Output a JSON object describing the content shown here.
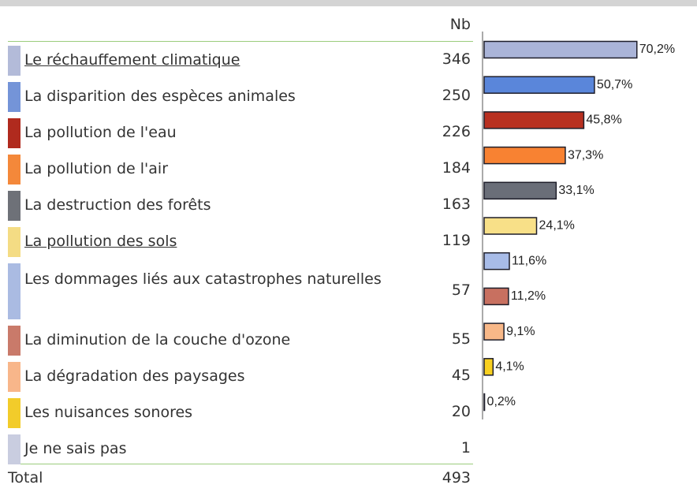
{
  "chart_data": {
    "type": "bar",
    "orientation": "horizontal",
    "count_header": "Nb",
    "categories": [
      "Le réchauffement climatique",
      "La disparition des espèces animales",
      "La pollution de l'eau",
      "La pollution de l'air",
      "La destruction des forêts",
      "La pollution des sols",
      "Les dommages liés aux catastrophes naturelles",
      "La diminution de la couche d'ozone",
      "La dégradation des paysages",
      "Les nuisances sonores",
      "Je ne sais pas"
    ],
    "underlined": [
      true,
      false,
      false,
      false,
      false,
      true,
      false,
      false,
      false,
      false,
      false
    ],
    "counts": [
      346,
      250,
      226,
      184,
      163,
      119,
      57,
      55,
      45,
      20,
      1
    ],
    "values": [
      70.2,
      50.7,
      45.8,
      37.3,
      33.1,
      24.1,
      11.6,
      11.2,
      9.1,
      4.1,
      0.2
    ],
    "value_labels": [
      "70,2%",
      "50,7%",
      "45,8%",
      "37,3%",
      "33,1%",
      "24,1%",
      "11,6%",
      "11,2%",
      "9,1%",
      "4,1%",
      "0,2%"
    ],
    "swatch_colors": [
      "#b3bbd9",
      "#7494d8",
      "#b02a1e",
      "#f4883a",
      "#6e7178",
      "#f4dc84",
      "#aabbe2",
      "#c97a6a",
      "#f8b68a",
      "#f2cc2a",
      "#c9cde0"
    ],
    "bar_colors": [
      "#aab4d8",
      "#5a86da",
      "#b83020",
      "#f88232",
      "#6a6e78",
      "#f8e088",
      "#a8bce8",
      "#c87060",
      "#f8b888",
      "#f8d020",
      "#c9cde0"
    ],
    "total_label": "Total",
    "total": 493
  }
}
